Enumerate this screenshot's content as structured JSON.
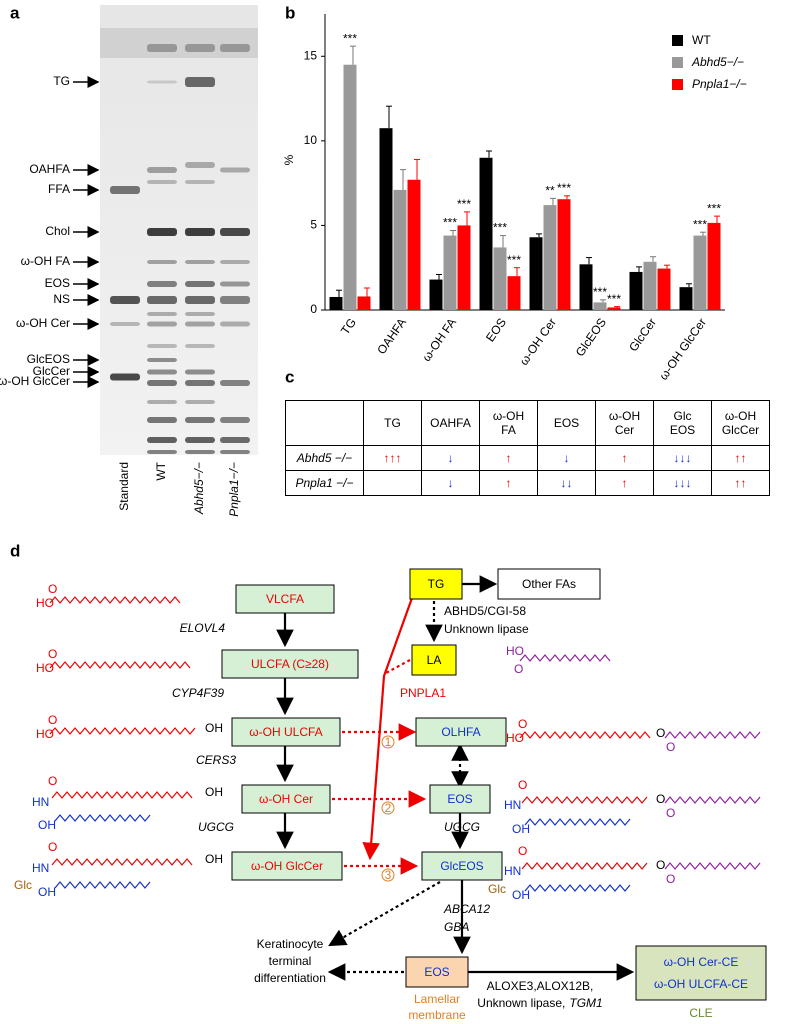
{
  "panel_labels": [
    "a",
    "b",
    "c",
    "d"
  ],
  "tlc": {
    "bands": [
      "TG",
      "OAHFA",
      "FFA",
      "Chol",
      "ω-OH FA",
      "EOS",
      "NS",
      "ω-OH Cer",
      "GlcEOS",
      "GlcCer",
      "ω-OH GlcCer"
    ],
    "lanes": [
      "Standard",
      "WT",
      "Abhd5−/−",
      "Pnpla1−/−"
    ]
  },
  "chart_data": {
    "type": "bar",
    "ylabel": "%",
    "categories": [
      "TG",
      "OAHFA",
      "ω-OH FA",
      "EOS",
      "ω-OH Cer",
      "GlcEOS",
      "GlcCer",
      "ω-OH GlcCer"
    ],
    "series": [
      {
        "name": "WT",
        "color": "#000000",
        "values": [
          0.77,
          10.75,
          1.8,
          9.0,
          4.3,
          2.7,
          2.25,
          1.35
        ],
        "errors": [
          0.4,
          1.3,
          0.3,
          0.4,
          0.2,
          0.4,
          0.3,
          0.2
        ],
        "annotations": [
          null,
          null,
          null,
          null,
          null,
          null,
          null,
          null
        ]
      },
      {
        "name": "Abhd5−/−",
        "color": "#999999",
        "values": [
          14.5,
          7.1,
          4.4,
          3.7,
          6.2,
          0.45,
          2.85,
          4.4
        ],
        "errors": [
          1.1,
          1.2,
          0.3,
          0.7,
          0.4,
          0.15,
          0.3,
          0.2
        ],
        "annotations": [
          "***",
          null,
          "***",
          "***",
          "**",
          "***",
          null,
          "***"
        ]
      },
      {
        "name": "Pnpla1−/−",
        "color": "#ff0000",
        "values": [
          0.8,
          7.7,
          5.0,
          2.0,
          6.55,
          0.15,
          2.45,
          5.15
        ],
        "errors": [
          0.5,
          1.2,
          0.8,
          0.5,
          0.2,
          0.05,
          0.2,
          0.4
        ],
        "annotations": [
          null,
          null,
          "***",
          "***",
          "***",
          "***",
          null,
          "***"
        ]
      }
    ],
    "ylim": [
      0,
      17.5
    ],
    "yticks": [
      0,
      5,
      10,
      15
    ],
    "legend": "upper right"
  },
  "table": {
    "header": [
      null,
      "TG",
      "OAHFA",
      "ω-OH\nFA",
      "EOS",
      "ω-OH\nCer",
      "Glc\nEOS",
      "ω-OH\nGlcCer"
    ],
    "rows": [
      [
        "Abhd5 −/−",
        "↑↑↑",
        "↓",
        "↑",
        "↓",
        "↑",
        "↓↓↓",
        "↑↑"
      ],
      [
        "Pnpla1 −/−",
        null,
        "↓",
        "↑",
        "↓↓",
        "↑",
        "↓↓↓",
        "↑↑"
      ]
    ]
  },
  "diagram": {
    "nodes": [
      "VLCFA",
      "ULCFA (C≥28)",
      "ω-OH ULCFA",
      "ω-OH Cer",
      "ω-OH GlcCer",
      "TG",
      "Other FAs",
      "LA",
      "OLHFA",
      "EOS",
      "GlcEOS",
      "EOS",
      "ω-OH Cer-CE",
      "ω-OH ULCFA-CE"
    ],
    "labels": [
      "ELOVL4",
      "CYP4F39",
      "CERS3",
      "UGCG",
      "UGCG",
      "ABCA12",
      "GBA",
      "ABHD5/CGI-58",
      "Unknown lipase",
      "PNPLA1",
      "ALOXE3,ALOX12B,",
      "Unknown lipase,",
      "TGM1",
      "Keratinocyte",
      "terminal",
      "differentiation",
      "Lamellar",
      "membrane",
      "CLE"
    ],
    "steps": [
      "1",
      "2",
      "3"
    ]
  },
  "structures": [
    {
      "labels": [
        "HO",
        "O"
      ]
    },
    {
      "labels": [
        "HO",
        "O"
      ]
    },
    {
      "labels": [
        "HO",
        "O",
        "OH"
      ]
    },
    {
      "labels": [
        "O",
        "HN",
        "OH",
        "OH"
      ]
    },
    {
      "labels": [
        "O",
        "HN",
        "Glc",
        "OH",
        "OH"
      ]
    },
    {
      "labels": [
        "HO",
        "O"
      ]
    },
    {
      "labels": [
        "HO",
        "O",
        "O",
        "O"
      ]
    },
    {
      "labels": [
        "O",
        "HN",
        "OH",
        "O",
        "O"
      ]
    },
    {
      "labels": [
        "O",
        "HN",
        "Glc",
        "OH",
        "O",
        "O"
      ]
    }
  ]
}
